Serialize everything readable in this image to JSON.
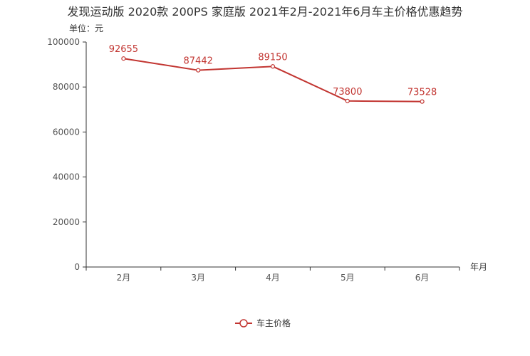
{
  "chart_data": {
    "type": "line",
    "title": "发现运动版 2020款 200PS 家庭版 2021年2月-2021年6月车主价格优惠趋势",
    "unit_label": "单位：元",
    "xlabel": "年月",
    "ylabel": "",
    "categories": [
      "2月",
      "3月",
      "4月",
      "5月",
      "6月"
    ],
    "series": [
      {
        "name": "车主价格",
        "values": [
          92655,
          87442,
          89150,
          73800,
          73528
        ]
      }
    ],
    "ylim": [
      0,
      100000
    ],
    "yticks": [
      "0",
      "20000",
      "40000",
      "60000",
      "80000",
      "100000"
    ],
    "yticks_values": [
      0,
      20000,
      40000,
      60000,
      80000,
      100000
    ],
    "grid": false,
    "legend": "bottom-center",
    "colors": {
      "series": "#c23531",
      "axis": "#333333",
      "text": "#333333",
      "tick_text": "#555555"
    }
  }
}
